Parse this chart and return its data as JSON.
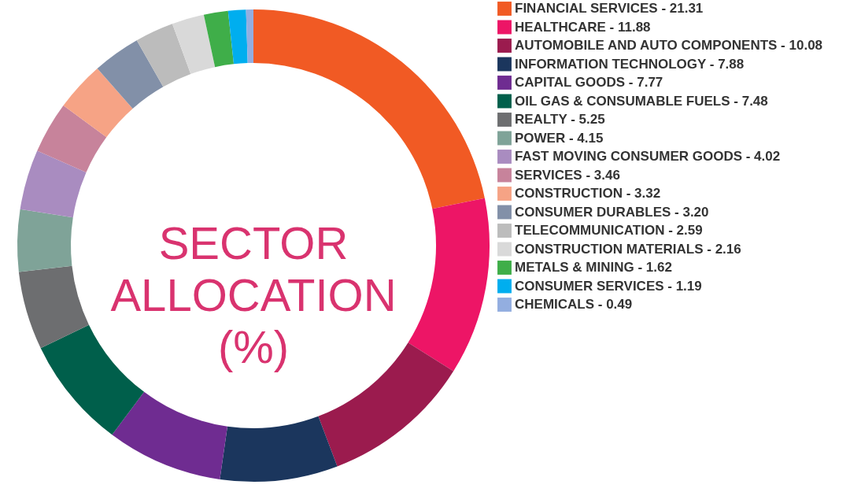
{
  "chart_data": {
    "type": "donut",
    "title": "SECTOR ALLOCATION (%)",
    "legend": "right",
    "categories": [
      "FINANCIAL SERVICES - 21.31",
      "HEALTHCARE - 11.88",
      "AUTOMOBILE AND AUTO COMPONENTS - 10.08",
      "INFORMATION TECHNOLOGY - 7.88",
      "CAPITAL GOODS - 7.77",
      "OIL GAS & CONSUMABLE FUELS - 7.48",
      "REALTY - 5.25",
      "POWER - 4.15",
      "FAST MOVING CONSUMER GOODS - 4.02",
      "SERVICES - 3.46",
      "CONSTRUCTION - 3.32",
      "CONSUMER DURABLES - 3.20",
      "TELECOMMUNICATION - 2.59",
      "CONSTRUCTION MATERIALS - 2.16",
      "METALS & MINING - 1.62",
      "CONSUMER SERVICES - 1.19",
      "CHEMICALS - 0.49"
    ],
    "values": [
      21.31,
      11.88,
      10.08,
      7.88,
      7.77,
      7.48,
      5.25,
      4.15,
      4.02,
      3.46,
      3.32,
      3.2,
      2.59,
      2.16,
      1.62,
      1.19,
      0.49
    ],
    "colors": [
      "#f15a24",
      "#ed1566",
      "#9b1b4e",
      "#1b365d",
      "#6f2c91",
      "#005f4b",
      "#6d6e70",
      "#7fa398",
      "#a98cc0",
      "#c7839b",
      "#f6a385",
      "#8290a8",
      "#bcbcbc",
      "#d9d9d9",
      "#3fae49",
      "#00aeef",
      "#93aee0"
    ]
  }
}
